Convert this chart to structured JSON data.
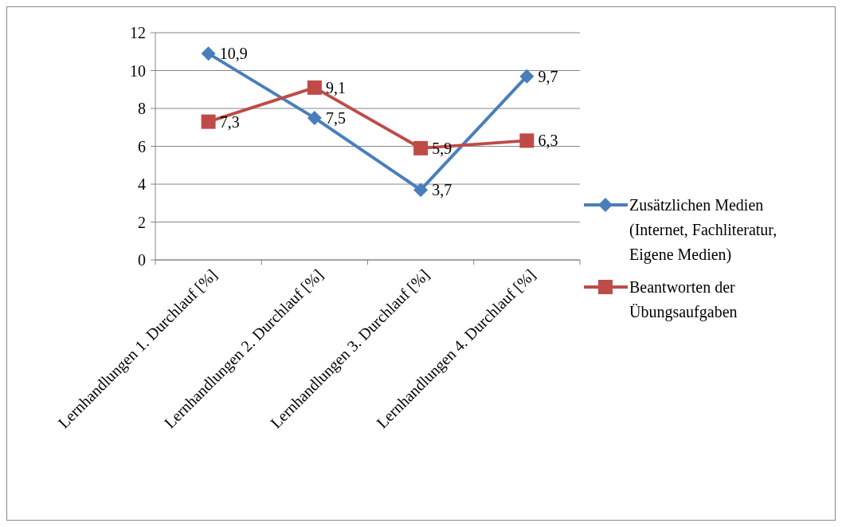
{
  "chart_data": {
    "type": "line",
    "categories": [
      "Lernhandlungen 1. Durchlauf [%]",
      "Lernhandlungen 2. Durchlauf [%]",
      "Lernhandlungen 3. Durchlauf [%]",
      "Lernhandlungen 4. Durchlauf [%]"
    ],
    "series": [
      {
        "name": "Zusätzlichen Medien (Internet, Fachliteratur, Eigene Medien)",
        "color": "#4a7ebb",
        "marker": "diamond",
        "values": [
          10.9,
          7.5,
          3.7,
          9.7
        ],
        "value_labels": [
          "10,9",
          "7,5",
          "3,7",
          "9,7"
        ]
      },
      {
        "name": "Beantworten der Übungsaufgaben",
        "color": "#be4b48",
        "marker": "square",
        "values": [
          7.3,
          9.1,
          5.9,
          6.3
        ],
        "value_labels": [
          "7,3",
          "9,1",
          "5,9",
          "6,3"
        ]
      }
    ],
    "ylim": [
      0,
      12
    ],
    "yticks": [
      0,
      2,
      4,
      6,
      8,
      10,
      12
    ],
    "grid": "y",
    "legend": "right"
  }
}
